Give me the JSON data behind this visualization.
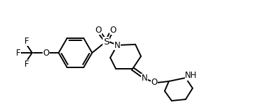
{
  "bg_color": "#ffffff",
  "line_color": "#000000",
  "line_width": 1.4,
  "font_size": 8.5,
  "figsize": [
    3.64,
    1.54
  ],
  "dpi": 100,
  "xlim": [
    0,
    364
  ],
  "ylim": [
    0,
    154
  ]
}
